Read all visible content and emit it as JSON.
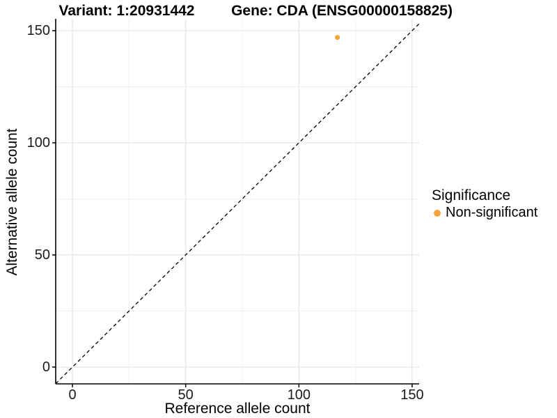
{
  "chart_data": {
    "type": "scatter",
    "title_left": "Variant: 1:20931442",
    "title_right": "Gene: CDA (ENSG00000158825)",
    "xlabel": "Reference allele count",
    "ylabel": "Alternative allele count",
    "x_ticks": [
      0,
      50,
      100,
      150
    ],
    "y_ticks": [
      0,
      50,
      100,
      150
    ],
    "x_minor_ticks": [
      25,
      75,
      125
    ],
    "y_minor_ticks": [
      25,
      75,
      125
    ],
    "xlim": [
      -7.4,
      153.1
    ],
    "ylim": [
      -7.5,
      155.3
    ],
    "grid": "major+minor",
    "grid_major_color": "#e6e6e6",
    "grid_minor_color": "#f0f0f0",
    "axis_color": "#000000",
    "reference_line": {
      "type": "identity",
      "slope": 1,
      "intercept": 0,
      "style": "dashed",
      "color": "#000000"
    },
    "series": [
      {
        "name": "Non-significant",
        "color": "#f7a43c",
        "points": [
          {
            "x": 117,
            "y": 147
          }
        ]
      }
    ],
    "legend": {
      "title": "Significance",
      "position": "right",
      "items": [
        {
          "label": "Non-significant",
          "color": "#f7a43c"
        }
      ]
    }
  }
}
